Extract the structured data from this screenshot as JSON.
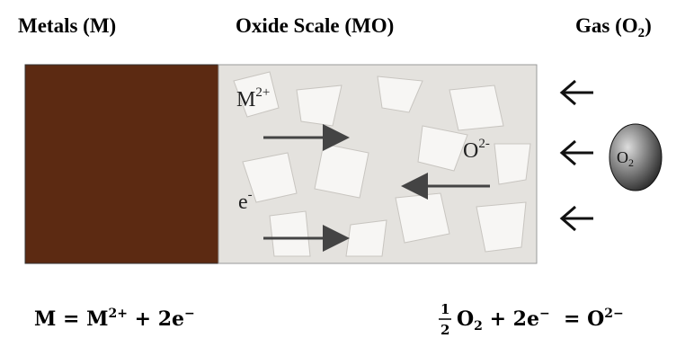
{
  "header": {
    "metal": "Metals (M)",
    "oxide": "Oxide Scale (MO)",
    "gas": [
      "Gas (O",
      "2",
      ")"
    ]
  },
  "labels": {
    "metal_ion": [
      "M",
      "2+"
    ],
    "electron": [
      "e",
      "-"
    ],
    "oxygen_ion": [
      "O",
      "2-"
    ],
    "molecule": [
      "O",
      "2"
    ]
  },
  "equations": {
    "left": [
      "M = M",
      "2+",
      " + 2e",
      "−"
    ],
    "right": {
      "numerator": "1",
      "denominator": "2",
      "parts": [
        "O",
        "2",
        " + 2e",
        "−",
        "  = O",
        "2−"
      ]
    }
  }
}
